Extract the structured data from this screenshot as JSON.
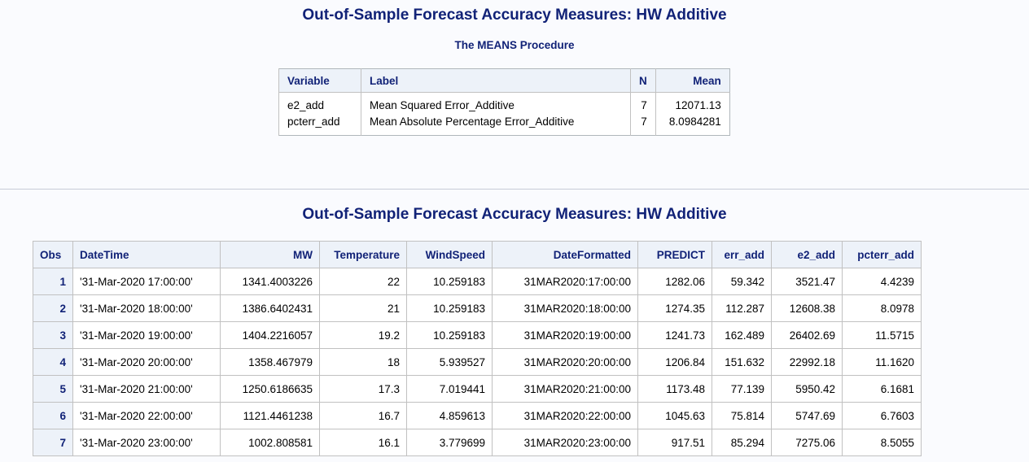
{
  "means_section": {
    "title": "Out-of-Sample Forecast Accuracy Measures: HW Additive",
    "subtitle": "The MEANS Procedure",
    "headers": [
      "Variable",
      "Label",
      "N",
      "Mean"
    ],
    "rows": [
      {
        "variable": "e2_add",
        "label": "Mean Squared Error_Additive",
        "n": "7",
        "mean": "12071.13"
      },
      {
        "variable": "pcterr_add",
        "label": "Mean Absolute Percentage Error_Additive",
        "n": "7",
        "mean": "8.0984281"
      }
    ]
  },
  "obs_section": {
    "title": "Out-of-Sample Forecast Accuracy Measures: HW Additive",
    "headers": [
      "Obs",
      "DateTime",
      "MW",
      "Temperature",
      "WindSpeed",
      "DateFormatted",
      "PREDICT",
      "err_add",
      "e2_add",
      "pcterr_add"
    ],
    "rows": [
      [
        "1",
        "'31-Mar-2020 17:00:00'",
        "1341.4003226",
        "22",
        "10.259183",
        "31MAR2020:17:00:00",
        "1282.06",
        "59.342",
        "3521.47",
        "4.4239"
      ],
      [
        "2",
        "'31-Mar-2020 18:00:00'",
        "1386.6402431",
        "21",
        "10.259183",
        "31MAR2020:18:00:00",
        "1274.35",
        "112.287",
        "12608.38",
        "8.0978"
      ],
      [
        "3",
        "'31-Mar-2020 19:00:00'",
        "1404.2216057",
        "19.2",
        "10.259183",
        "31MAR2020:19:00:00",
        "1241.73",
        "162.489",
        "26402.69",
        "11.5715"
      ],
      [
        "4",
        "'31-Mar-2020 20:00:00'",
        "1358.467979",
        "18",
        "5.939527",
        "31MAR2020:20:00:00",
        "1206.84",
        "151.632",
        "22992.18",
        "11.1620"
      ],
      [
        "5",
        "'31-Mar-2020 21:00:00'",
        "1250.6186635",
        "17.3",
        "7.019441",
        "31MAR2020:21:00:00",
        "1173.48",
        "77.139",
        "5950.42",
        "6.1681"
      ],
      [
        "6",
        "'31-Mar-2020 22:00:00'",
        "1121.4461238",
        "16.7",
        "4.859613",
        "31MAR2020:22:00:00",
        "1045.63",
        "75.814",
        "5747.69",
        "6.7603"
      ],
      [
        "7",
        "'31-Mar-2020 23:00:00'",
        "1002.808581",
        "16.1",
        "3.779699",
        "31MAR2020:23:00:00",
        "917.51",
        "85.294",
        "7275.06",
        "8.5055"
      ]
    ]
  }
}
